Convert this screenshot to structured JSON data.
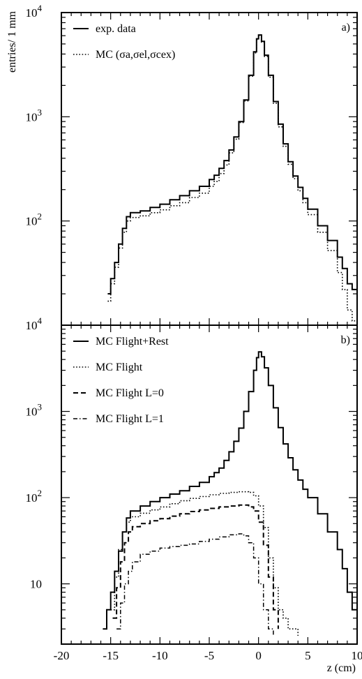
{
  "chart_data": [
    {
      "panel": "a)",
      "type": "line",
      "ylabel": "entries/ 1 mm",
      "y_scale": "log",
      "ylim": [
        10,
        10000
      ],
      "xlim": [
        -20,
        10
      ],
      "y_ticks": [
        {
          "value": 10000,
          "base": "10",
          "exp": "4"
        },
        {
          "value": 1000,
          "base": "10",
          "exp": "3"
        },
        {
          "value": 100,
          "base": "10",
          "exp": "2"
        }
      ],
      "series": [
        {
          "name": "exp. data",
          "style": "solid",
          "x": [
            -15.3,
            -15.0,
            -14.6,
            -14.2,
            -13.8,
            -13.4,
            -13.0,
            -12.0,
            -11.0,
            -10.0,
            -9.0,
            -8.0,
            -7.0,
            -6.0,
            -5.0,
            -4.5,
            -4.0,
            -3.5,
            -3.0,
            -2.5,
            -2.0,
            -1.5,
            -1.0,
            -0.5,
            -0.2,
            0.0,
            0.3,
            0.6,
            1.0,
            1.5,
            2.0,
            2.5,
            3.0,
            3.5,
            4.0,
            4.5,
            5.0,
            6.0,
            7.0,
            8.0,
            8.5,
            9.0,
            9.5,
            10.0
          ],
          "y": [
            20,
            28,
            40,
            60,
            85,
            110,
            120,
            125,
            135,
            145,
            160,
            175,
            195,
            215,
            250,
            275,
            320,
            380,
            480,
            640,
            900,
            1450,
            2500,
            4200,
            5600,
            6100,
            5300,
            3900,
            2500,
            1400,
            850,
            550,
            370,
            270,
            210,
            165,
            130,
            90,
            65,
            45,
            35,
            25,
            22,
            18
          ]
        },
        {
          "name": "MC (σa,σel,σcex)",
          "style": "dotted",
          "x": [
            -15.3,
            -15.0,
            -14.6,
            -14.2,
            -13.8,
            -13.4,
            -13.0,
            -12.0,
            -11.0,
            -10.0,
            -9.0,
            -8.0,
            -7.0,
            -6.0,
            -5.0,
            -4.5,
            -4.0,
            -3.5,
            -3.0,
            -2.5,
            -2.0,
            -1.5,
            -1.0,
            -0.5,
            -0.2,
            0.0,
            0.3,
            0.6,
            1.0,
            1.5,
            2.0,
            2.5,
            3.0,
            3.5,
            4.0,
            4.5,
            5.0,
            6.0,
            7.0,
            8.0,
            8.5,
            9.0,
            9.5,
            10.0
          ],
          "y": [
            17,
            25,
            36,
            55,
            78,
            100,
            108,
            112,
            120,
            128,
            140,
            150,
            168,
            185,
            215,
            240,
            285,
            345,
            450,
            610,
            880,
            1420,
            2450,
            4100,
            5500,
            6000,
            5200,
            3800,
            2400,
            1350,
            800,
            520,
            350,
            255,
            195,
            150,
            115,
            78,
            52,
            32,
            22,
            14,
            11,
            10
          ]
        }
      ],
      "legend_placement": "top-left"
    },
    {
      "panel": "b)",
      "type": "line",
      "xlabel": "z  (cm)",
      "y_scale": "log",
      "ylim": [
        2,
        10000
      ],
      "xlim": [
        -20,
        10
      ],
      "x_ticks": [
        -20,
        -15,
        -10,
        -5,
        0,
        5,
        10
      ],
      "y_ticks": [
        {
          "value": 10000,
          "base": "10",
          "exp": "4"
        },
        {
          "value": 1000,
          "base": "10",
          "exp": "3"
        },
        {
          "value": 100,
          "base": "10",
          "exp": "2"
        },
        {
          "value": 10,
          "base": "10",
          "exp": ""
        }
      ],
      "series": [
        {
          "name": "MC Flight+Rest",
          "style": "solid",
          "x": [
            -15.8,
            -15.4,
            -15.0,
            -14.6,
            -14.2,
            -13.8,
            -13.4,
            -13.0,
            -12.0,
            -11.0,
            -10.0,
            -9.0,
            -8.0,
            -7.0,
            -6.0,
            -5.0,
            -4.5,
            -4.0,
            -3.5,
            -3.0,
            -2.5,
            -2.0,
            -1.5,
            -1.0,
            -0.5,
            -0.2,
            0.0,
            0.3,
            0.6,
            1.0,
            1.5,
            2.0,
            2.5,
            3.0,
            3.5,
            4.0,
            4.5,
            5.0,
            6.0,
            7.0,
            8.0,
            8.5,
            9.0,
            9.5,
            10.0
          ],
          "y": [
            3,
            5,
            8,
            14,
            24,
            40,
            58,
            70,
            80,
            90,
            100,
            110,
            120,
            135,
            150,
            175,
            195,
            220,
            270,
            340,
            450,
            640,
            1000,
            1700,
            3000,
            4200,
            4900,
            4300,
            3200,
            2000,
            1100,
            650,
            420,
            290,
            210,
            160,
            125,
            100,
            65,
            40,
            25,
            15,
            8,
            5,
            3
          ]
        },
        {
          "name": "MC Flight",
          "style": "dotted",
          "x": [
            -15.0,
            -14.6,
            -14.2,
            -13.8,
            -13.4,
            -13.0,
            -12.0,
            -11.0,
            -10.0,
            -9.0,
            -8.0,
            -7.0,
            -6.0,
            -5.0,
            -4.0,
            -3.0,
            -2.0,
            -1.0,
            -0.5,
            0.0,
            0.5,
            1.0,
            1.5,
            2.0,
            2.5,
            3.0,
            3.5,
            4.0
          ],
          "y": [
            5,
            12,
            25,
            40,
            52,
            60,
            66,
            72,
            78,
            85,
            92,
            98,
            103,
            108,
            112,
            115,
            117,
            115,
            105,
            80,
            45,
            20,
            9,
            5,
            4,
            3,
            3,
            2.5
          ]
        },
        {
          "name": "MC Flight L=0",
          "style": "dashed",
          "x": [
            -14.8,
            -14.4,
            -14.0,
            -13.6,
            -13.2,
            -12.8,
            -12.0,
            -11.0,
            -10.0,
            -9.0,
            -8.0,
            -7.0,
            -6.0,
            -5.0,
            -4.0,
            -3.0,
            -2.0,
            -1.0,
            -0.5,
            0.0,
            0.5,
            1.0,
            1.5,
            2.0
          ],
          "y": [
            4,
            9,
            18,
            30,
            40,
            46,
            50,
            54,
            57,
            61,
            65,
            69,
            72,
            75,
            78,
            80,
            82,
            78,
            70,
            52,
            28,
            12,
            5,
            3
          ]
        },
        {
          "name": "MC Flight L=1",
          "style": "dash-dot",
          "x": [
            -14.4,
            -14.0,
            -13.6,
            -13.2,
            -12.8,
            -12.0,
            -11.0,
            -10.0,
            -9.0,
            -8.0,
            -7.0,
            -6.0,
            -5.0,
            -4.0,
            -3.0,
            -2.0,
            -1.5,
            -1.0,
            -0.5,
            0.0,
            0.5,
            1.0,
            1.5
          ],
          "y": [
            3,
            6,
            10,
            14,
            18,
            22,
            24,
            26,
            27,
            28,
            29,
            31,
            33,
            35,
            37,
            38,
            36,
            30,
            20,
            10,
            5,
            3,
            2.5
          ]
        }
      ],
      "legend_placement": "top-left"
    }
  ]
}
